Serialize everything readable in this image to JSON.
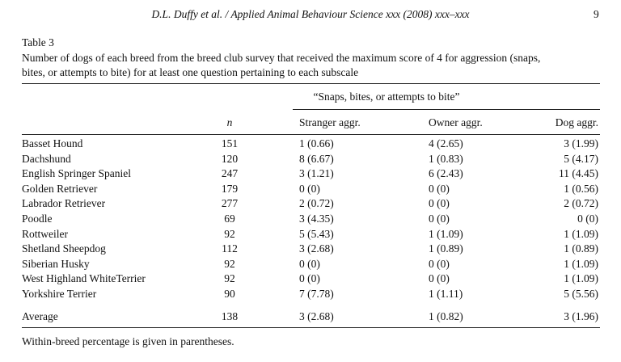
{
  "header": {
    "running_title": "D.L. Duffy et al. / Applied Animal Behaviour Science xxx (2008) xxx–xxx",
    "page_number": "9"
  },
  "table": {
    "label": "Table 3",
    "caption_lines": [
      "Number of dogs of each breed from the breed club survey that received the maximum score of 4 for aggression (snaps,",
      "bites, or attempts to bite) for at least one question pertaining to each subscale"
    ],
    "group_header": "“Snaps, bites, or attempts to bite”",
    "columns": [
      "",
      "n",
      "Stranger aggr.",
      "Owner aggr.",
      "Dog aggr."
    ],
    "rows": [
      [
        "Basset Hound",
        151,
        "1 (0.66)",
        "4 (2.65)",
        "3 (1.99)"
      ],
      [
        "Dachshund",
        120,
        "8 (6.67)",
        "1 (0.83)",
        "5 (4.17)"
      ],
      [
        "English Springer Spaniel",
        247,
        "3 (1.21)",
        "6 (2.43)",
        "11 (4.45)"
      ],
      [
        "Golden Retriever",
        179,
        "0 (0)",
        "0 (0)",
        "1 (0.56)"
      ],
      [
        "Labrador Retriever",
        277,
        "2 (0.72)",
        "0 (0)",
        "2 (0.72)"
      ],
      [
        "Poodle",
        69,
        "3 (4.35)",
        "0 (0)",
        "0 (0)"
      ],
      [
        "Rottweiler",
        92,
        "5 (5.43)",
        "1 (1.09)",
        "1 (1.09)"
      ],
      [
        "Shetland Sheepdog",
        112,
        "3 (2.68)",
        "1 (0.89)",
        "1 (0.89)"
      ],
      [
        "Siberian Husky",
        92,
        "0 (0)",
        "0 (0)",
        "1 (1.09)"
      ],
      [
        "West Highland WhiteTerrier",
        92,
        "0 (0)",
        "0 (0)",
        "1 (1.09)"
      ],
      [
        "Yorkshire Terrier",
        90,
        "7 (7.78)",
        "1 (1.11)",
        "5 (5.56)"
      ]
    ],
    "average": [
      "Average",
      138,
      "3 (2.68)",
      "1 (0.82)",
      "3 (1.96)"
    ],
    "footnote": "Within-breed percentage is given in parentheses."
  }
}
